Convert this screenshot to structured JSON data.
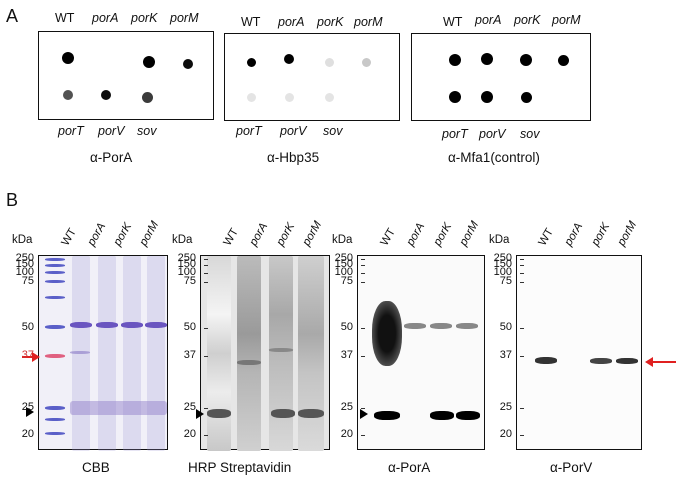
{
  "panel_a": {
    "letter": "A",
    "blots": [
      {
        "caption": "α-PorA",
        "top_labels": [
          "WT",
          "porA",
          "porK",
          "porM"
        ],
        "bottom_labels": [
          "porT",
          "porV",
          "sov"
        ],
        "dot_intensity_top": [
          1.0,
          0.0,
          1.0,
          0.95
        ],
        "dot_intensity_bottom": [
          0.65,
          0.95,
          0.75
        ]
      },
      {
        "caption": "α-Hbp35",
        "top_labels": [
          "WT",
          "porA",
          "porK",
          "porM"
        ],
        "bottom_labels": [
          "porT",
          "porV",
          "sov"
        ],
        "dot_intensity_top": [
          1.0,
          1.0,
          0.05,
          0.15
        ],
        "dot_intensity_bottom": [
          0.03,
          0.03,
          0.03
        ]
      },
      {
        "caption": "α-Mfa1(control)",
        "top_labels": [
          "WT",
          "porA",
          "porK",
          "porM"
        ],
        "bottom_labels": [
          "porT",
          "porV",
          "sov"
        ],
        "dot_intensity_top": [
          1.0,
          1.0,
          1.0,
          1.0
        ],
        "dot_intensity_bottom": [
          1.0,
          1.0,
          1.0
        ]
      }
    ]
  },
  "panel_b": {
    "letter": "B",
    "kda_label": "kDa",
    "lanes": [
      "WT",
      "porA",
      "porK",
      "porM"
    ],
    "gels": [
      {
        "caption": "CBB",
        "markers": [
          "250",
          "150",
          "100",
          "75",
          "50",
          "37",
          "25",
          "20"
        ],
        "arrows": [
          "black-left-25",
          "red-left-37"
        ]
      },
      {
        "caption": "HRP  Streptavidin",
        "markers": [
          "250",
          "150",
          "100",
          "75",
          "50",
          "37",
          "25",
          "20"
        ],
        "arrows": [
          "black-left-25"
        ]
      },
      {
        "caption": "α-PorA",
        "markers": [
          "250",
          "150",
          "100",
          "75",
          "50",
          "37",
          "25",
          "20"
        ],
        "arrows": [
          "black-left-25"
        ]
      },
      {
        "caption": "α-PorV",
        "markers": [
          "250",
          "150",
          "100",
          "75",
          "50",
          "37",
          "25",
          "20"
        ],
        "arrows": [
          "red-right-37"
        ]
      }
    ]
  }
}
